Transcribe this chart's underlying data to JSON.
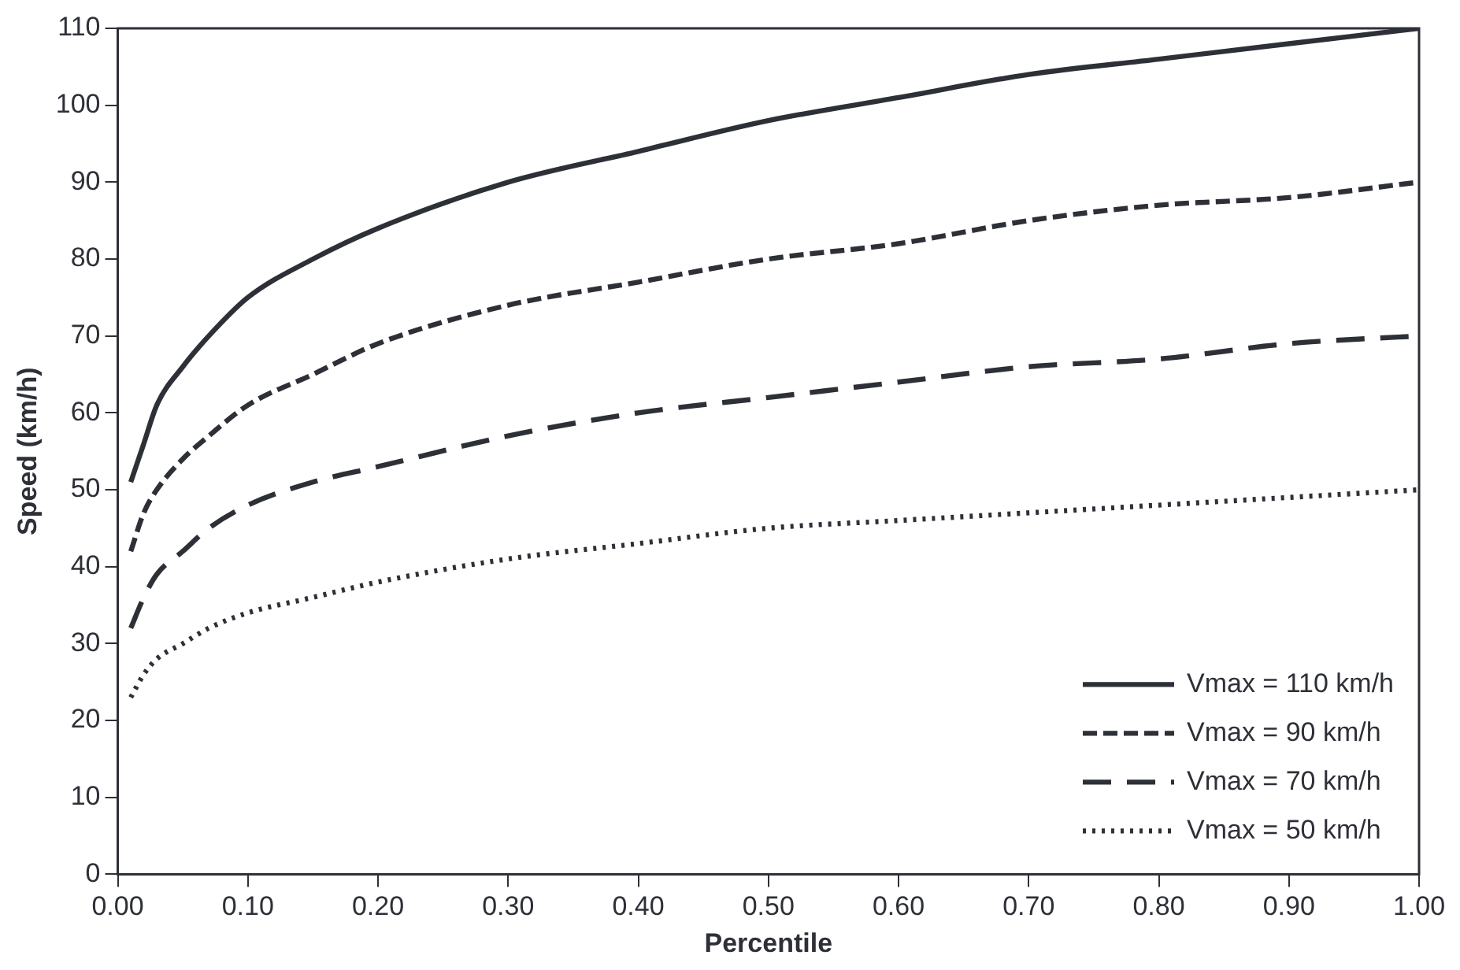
{
  "chart_data": {
    "type": "line",
    "xlabel": "Percentile",
    "ylabel": "Speed (km/h)",
    "x": [
      0.01,
      0.02,
      0.03,
      0.05,
      0.07,
      0.1,
      0.15,
      0.2,
      0.3,
      0.4,
      0.5,
      0.6,
      0.7,
      0.8,
      0.9,
      1.0
    ],
    "series": [
      {
        "name": "Vmax = 110 km/h",
        "color": "#2e3038",
        "line_style": "solid",
        "values": [
          51,
          56,
          61,
          66,
          70,
          75,
          80,
          84,
          90,
          94,
          98,
          101,
          104,
          106,
          108,
          110
        ]
      },
      {
        "name": "Vmax = 90 km/h",
        "color": "#2e3038",
        "line_style": "dashed",
        "values": [
          42,
          47,
          50,
          54,
          57,
          61,
          65,
          69,
          74,
          77,
          80,
          82,
          85,
          87,
          88,
          90
        ]
      },
      {
        "name": "Vmax = 70 km/h",
        "color": "#2e3038",
        "line_style": "dashed",
        "values": [
          32,
          36,
          39,
          42,
          45,
          48,
          51,
          53,
          57,
          60,
          62,
          64,
          66,
          67,
          69,
          70
        ]
      },
      {
        "name": "Vmax = 50 km/h",
        "color": "#2e3038",
        "line_style": "dotted",
        "values": [
          23,
          26,
          28,
          30,
          32,
          34,
          36,
          38,
          41,
          43,
          45,
          46,
          47,
          48,
          49,
          50
        ]
      }
    ],
    "xlim": [
      0,
      1
    ],
    "xticks": [
      {
        "value": 0,
        "label": "0.00"
      },
      {
        "value": 0.1,
        "label": "0.10"
      },
      {
        "value": 0.2,
        "label": "0.20"
      },
      {
        "value": 0.3,
        "label": "0.30"
      },
      {
        "value": 0.4,
        "label": "0.40"
      },
      {
        "value": 0.5,
        "label": "0.50"
      },
      {
        "value": 0.6,
        "label": "0.60"
      },
      {
        "value": 0.7,
        "label": "0.70"
      },
      {
        "value": 0.8,
        "label": "0.80"
      },
      {
        "value": 0.9,
        "label": "0.90"
      },
      {
        "value": 1,
        "label": "1.00"
      }
    ],
    "ylim": [
      0,
      110
    ],
    "yticks": [
      0,
      10,
      20,
      30,
      40,
      50,
      60,
      70,
      80,
      90,
      100,
      110
    ],
    "grid": false,
    "legend": "bottom right",
    "marker": "none"
  }
}
